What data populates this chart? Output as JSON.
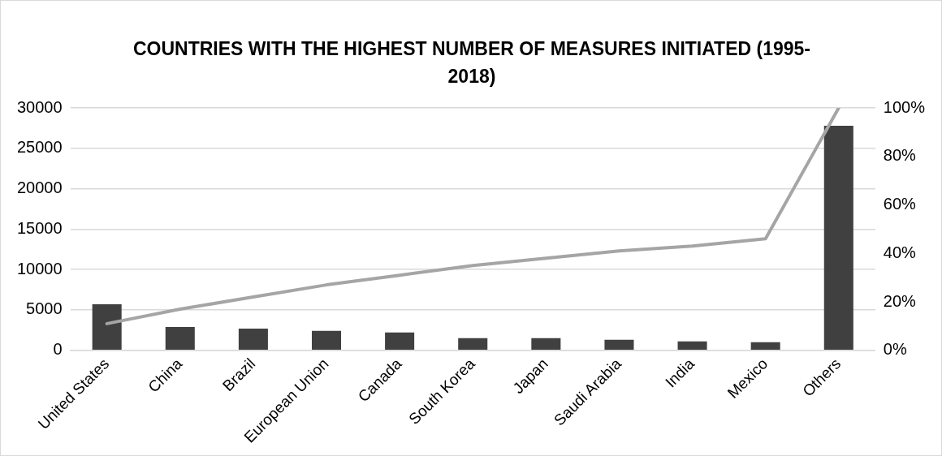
{
  "chart_data": {
    "type": "bar",
    "title": "COUNTRIES WITH THE HIGHEST NUMBER OF MEASURES INITIATED (1995-2018)",
    "categories": [
      "United States",
      "China",
      "Brazil",
      "European Union",
      "Canada",
      "South Korea",
      "Japan",
      "Saudi Arabia",
      "India",
      "Mexico",
      "Others"
    ],
    "series": [
      {
        "color": "#404040",
        "values": [
          5700,
          2900,
          2700,
          2400,
          2200,
          1500,
          1500,
          1300,
          1100,
          1000,
          27800
        ]
      },
      {
        "type": "line",
        "axis": "y2",
        "color": "#a5a5a5",
        "values": [
          11,
          17,
          22,
          27,
          31,
          35,
          38,
          41,
          43,
          46,
          100
        ]
      }
    ],
    "ylim": [
      0,
      30000
    ],
    "yticks": [
      0,
      5000,
      10000,
      15000,
      20000,
      25000,
      30000
    ],
    "y2lim": [
      0,
      100
    ],
    "y2ticks": [
      {
        "value": 0,
        "label": "0%"
      },
      {
        "value": 20,
        "label": "20%"
      },
      {
        "value": 40,
        "label": "40%"
      },
      {
        "value": 60,
        "label": "60%"
      },
      {
        "value": 80,
        "label": "80%"
      },
      {
        "value": 100,
        "label": "100%"
      }
    ],
    "grid": "y",
    "legend": false,
    "marker": "none",
    "line_style": "solid"
  }
}
